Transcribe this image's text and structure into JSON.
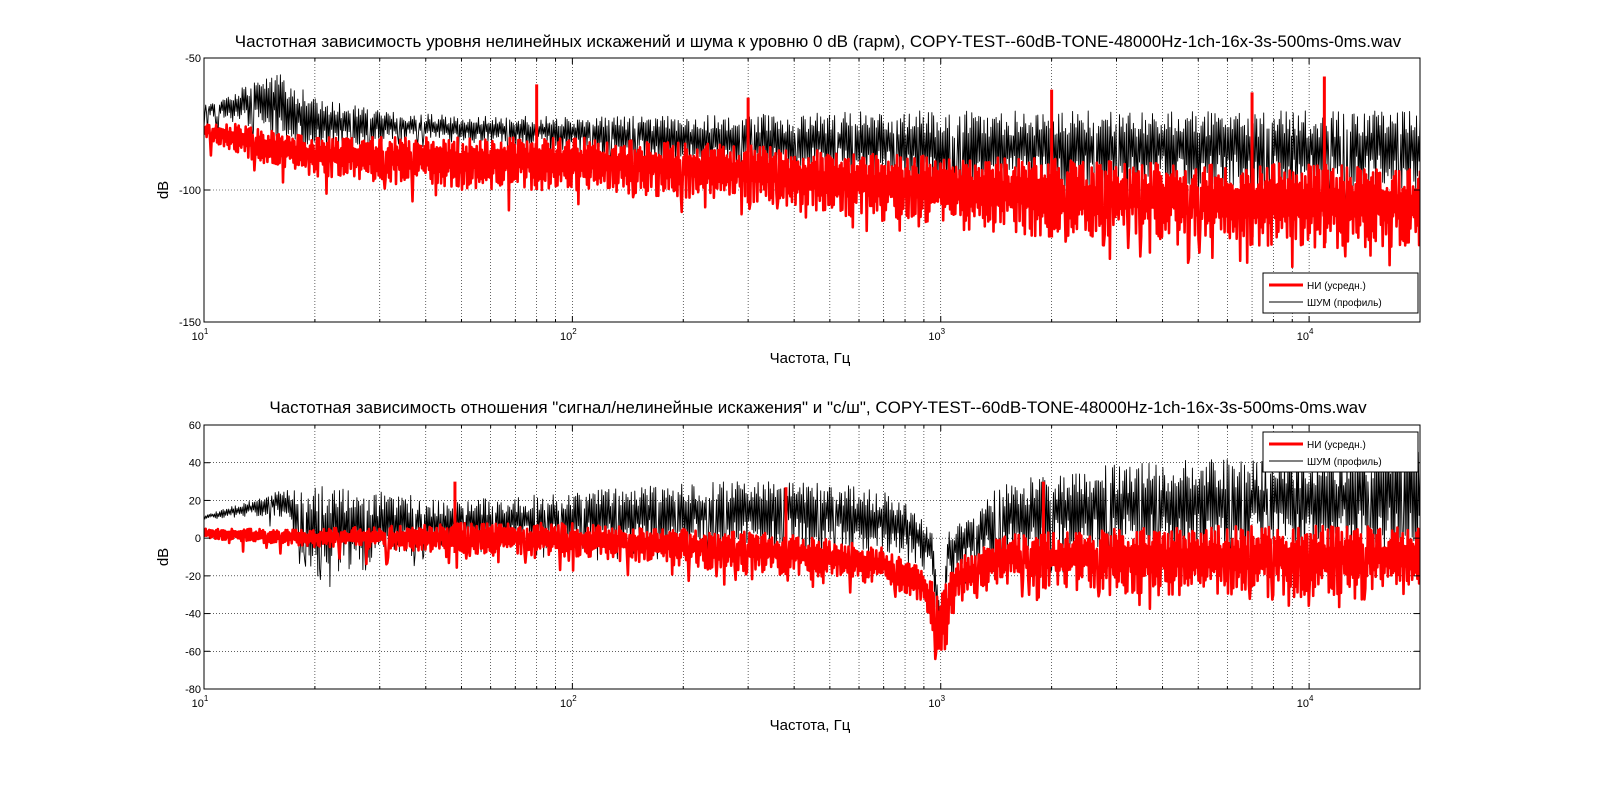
{
  "chart_data": [
    {
      "type": "line",
      "title": "Частотная зависимость уровня нелинейных искажений и шума к уровню 0 dB (гарм), COPY-TEST--60dB-TONE-48000Hz-1ch-16x-3s-500ms-0ms.wav",
      "xlabel": "Частота, Гц",
      "ylabel": "dB",
      "xscale": "log",
      "xlim": [
        10,
        20000
      ],
      "ylim": [
        -150,
        -50
      ],
      "xticks": [
        10,
        100,
        1000,
        10000
      ],
      "xtick_labels": [
        {
          "base": "10",
          "exp": "1"
        },
        {
          "base": "10",
          "exp": "2"
        },
        {
          "base": "10",
          "exp": "3"
        },
        {
          "base": "10",
          "exp": "4"
        }
      ],
      "yticks": [
        -150,
        -100,
        -50
      ],
      "ytick_labels": [
        "-150",
        "-100",
        "-50"
      ],
      "grid": true,
      "legend": "bottom-right",
      "series": [
        {
          "name": "НИ (усредн.)",
          "color": "#ff0000",
          "line_width": "thick",
          "upper_envelope_x": [
            10,
            13,
            16,
            20,
            30,
            50,
            80,
            100,
            200,
            300,
            500,
            1000,
            2000,
            5000,
            10000,
            20000
          ],
          "upper_envelope_y": [
            -75,
            -75,
            -78,
            -80,
            -80,
            -80,
            -80,
            -80,
            -82,
            -83,
            -85,
            -87,
            -88,
            -90,
            -90,
            -92
          ],
          "lower_envelope_x": [
            10,
            13,
            16,
            20,
            30,
            50,
            80,
            100,
            200,
            300,
            500,
            1000,
            2000,
            5000,
            10000,
            20000
          ],
          "lower_envelope_y": [
            -80,
            -88,
            -92,
            -95,
            -97,
            -100,
            -100,
            -100,
            -103,
            -105,
            -110,
            -115,
            -118,
            -120,
            -122,
            -122
          ],
          "spikes": [
            {
              "x": 80,
              "y": -60
            },
            {
              "x": 300,
              "y": -65
            },
            {
              "x": 2000,
              "y": -62
            },
            {
              "x": 7000,
              "y": -63
            },
            {
              "x": 11000,
              "y": -57
            }
          ]
        },
        {
          "name": "ШУМ (профиль)",
          "color": "#000000",
          "line_width": "thin",
          "upper_envelope_x": [
            10,
            13,
            16,
            20,
            30,
            50,
            100,
            200,
            500,
            1000,
            2000,
            5000,
            10000,
            20000
          ],
          "upper_envelope_y": [
            -68,
            -60,
            -55,
            -65,
            -70,
            -72,
            -72,
            -72,
            -70,
            -70,
            -70,
            -70,
            -70,
            -70
          ],
          "lower_envelope_x": [
            10,
            13,
            16,
            20,
            30,
            50,
            100,
            200,
            500,
            1000,
            2000,
            5000,
            10000,
            20000
          ],
          "lower_envelope_y": [
            -72,
            -76,
            -80,
            -85,
            -82,
            -82,
            -85,
            -90,
            -95,
            -100,
            -100,
            -100,
            -100,
            -100
          ]
        }
      ]
    },
    {
      "type": "line",
      "title": "Частотная зависимость отношения \"сигнал/нелинейные искажения\" и \"с/ш\", COPY-TEST--60dB-TONE-48000Hz-1ch-16x-3s-500ms-0ms.wav",
      "xlabel": "Частота, Гц",
      "ylabel": "dB",
      "xscale": "log",
      "xlim": [
        10,
        20000
      ],
      "ylim": [
        -80,
        60
      ],
      "xticks": [
        10,
        100,
        1000,
        10000
      ],
      "xtick_labels": [
        {
          "base": "10",
          "exp": "1"
        },
        {
          "base": "10",
          "exp": "2"
        },
        {
          "base": "10",
          "exp": "3"
        },
        {
          "base": "10",
          "exp": "4"
        }
      ],
      "yticks": [
        -80,
        -60,
        -40,
        -20,
        0,
        20,
        40,
        60
      ],
      "ytick_labels": [
        "-80",
        "-60",
        "-40",
        "-20",
        "0",
        "20",
        "40",
        "60"
      ],
      "grid": true,
      "legend": "top-right",
      "series": [
        {
          "name": "НИ (усредн.)",
          "color": "#ff0000",
          "line_width": "thick",
          "upper_envelope_x": [
            10,
            20,
            50,
            100,
            200,
            400,
            700,
            900,
            1000,
            1100,
            1500,
            3000,
            10000,
            20000
          ],
          "upper_envelope_y": [
            5,
            5,
            8,
            8,
            5,
            2,
            -5,
            -15,
            -30,
            -10,
            2,
            5,
            8,
            5
          ],
          "lower_envelope_x": [
            10,
            20,
            50,
            100,
            200,
            400,
            700,
            900,
            1000,
            1100,
            1500,
            3000,
            10000,
            20000
          ],
          "lower_envelope_y": [
            0,
            -5,
            -8,
            -10,
            -15,
            -20,
            -25,
            -35,
            -70,
            -35,
            -25,
            -30,
            -32,
            -25
          ],
          "spikes": [
            {
              "x": 48,
              "y": 30
            },
            {
              "x": 380,
              "y": 27
            },
            {
              "x": 1900,
              "y": 30
            },
            {
              "x": 1000,
              "y": -70
            }
          ]
        },
        {
          "name": "ШУМ (профиль)",
          "color": "#000000",
          "line_width": "thin",
          "upper_envelope_x": [
            10,
            16,
            20,
            50,
            100,
            200,
            500,
            800,
            950,
            1000,
            1050,
            1500,
            3000,
            10000,
            20000
          ],
          "upper_envelope_y": [
            12,
            25,
            28,
            20,
            25,
            30,
            30,
            22,
            5,
            -40,
            5,
            30,
            40,
            45,
            50
          ],
          "lower_envelope_x": [
            10,
            16,
            20,
            50,
            100,
            200,
            500,
            800,
            950,
            1000,
            1050,
            1500,
            3000,
            10000,
            20000
          ],
          "lower_envelope_y": [
            10,
            12,
            -20,
            -5,
            -5,
            -5,
            -5,
            -10,
            -20,
            -60,
            -20,
            -10,
            -10,
            -10,
            -10
          ]
        }
      ]
    }
  ]
}
